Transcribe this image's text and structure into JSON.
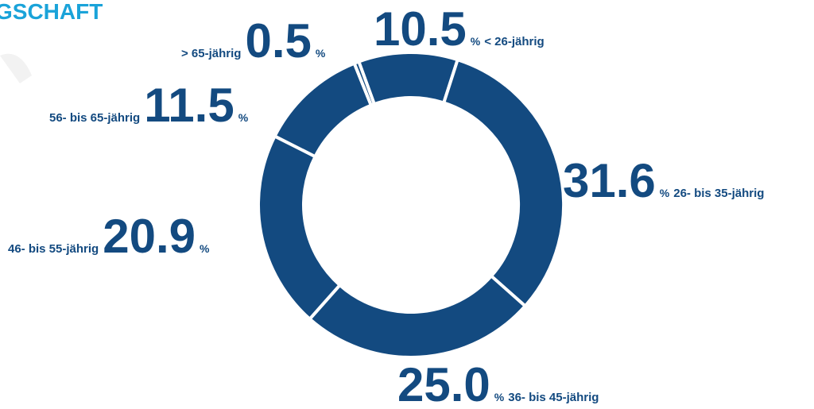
{
  "chart_data": {
    "type": "donut",
    "title": "GSCHAFT",
    "unit": "%",
    "categories": [
      "< 26-jährig",
      "26- bis 35-jährig",
      "36- bis 45-jährig",
      "46- bis 55-jährig",
      "56- bis 65-jährig",
      "> 65-jährig"
    ],
    "values": [
      10.5,
      31.6,
      25.0,
      20.9,
      11.5,
      0.5
    ],
    "value_labels": [
      "10.5",
      "31.6",
      "25.0",
      "20.9",
      "11.5",
      "0.5"
    ],
    "color": "#134a80"
  }
}
